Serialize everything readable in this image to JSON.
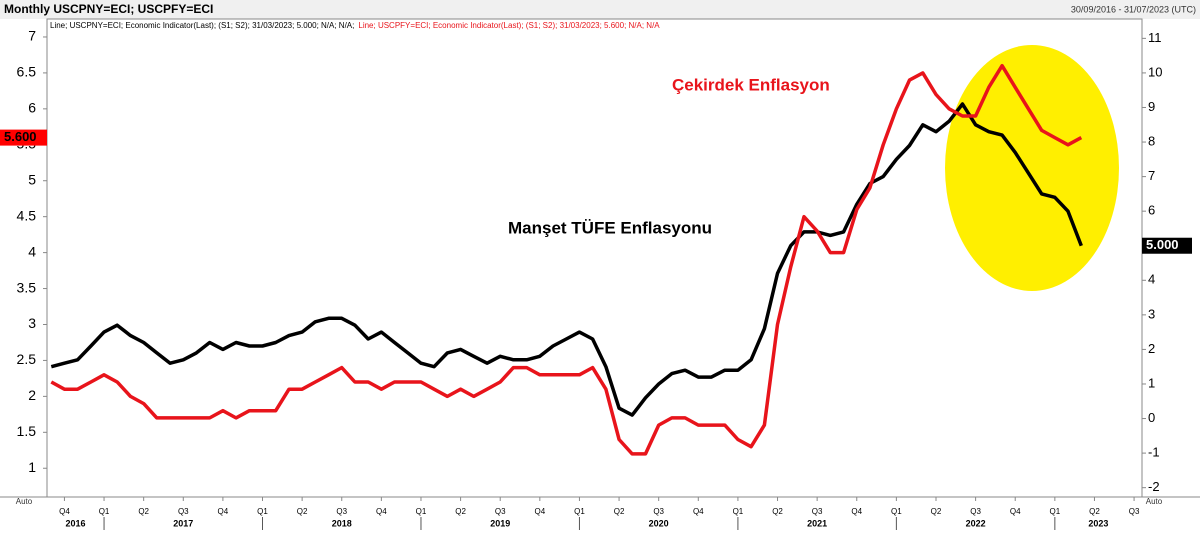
{
  "chart_data": {
    "type": "line",
    "title": "Monthly USCPNY=ECI; USCPFY=ECI",
    "date_range": "30/09/2016 - 31/07/2023 (UTC)",
    "x": [
      2016.667,
      2016.75,
      2016.833,
      2016.917,
      2017,
      2017.083,
      2017.167,
      2017.25,
      2017.333,
      2017.417,
      2017.5,
      2017.583,
      2017.667,
      2017.75,
      2017.833,
      2017.917,
      2018,
      2018.083,
      2018.167,
      2018.25,
      2018.333,
      2018.417,
      2018.5,
      2018.583,
      2018.667,
      2018.75,
      2018.833,
      2018.917,
      2019,
      2019.083,
      2019.167,
      2019.25,
      2019.333,
      2019.417,
      2019.5,
      2019.583,
      2019.667,
      2019.75,
      2019.833,
      2019.917,
      2020,
      2020.083,
      2020.167,
      2020.25,
      2020.333,
      2020.417,
      2020.5,
      2020.583,
      2020.667,
      2020.75,
      2020.833,
      2020.917,
      2021,
      2021.083,
      2021.167,
      2021.25,
      2021.333,
      2021.417,
      2021.5,
      2021.583,
      2021.667,
      2021.75,
      2021.833,
      2021.917,
      2022,
      2022.083,
      2022.167,
      2022.25,
      2022.333,
      2022.417,
      2022.5,
      2022.583,
      2022.667,
      2022.75,
      2022.833,
      2022.917,
      2023,
      2023.083,
      2023.167
    ],
    "series": [
      {
        "legend": "Line; USCPNY=ECI; Economic Indicator(Last); (S1; S2); 31/03/2023; 5.000; N/A; N/A;",
        "color": "#000000",
        "axis": "y2",
        "last_label": "5.000",
        "values": [
          1.5,
          1.6,
          1.7,
          2.1,
          2.5,
          2.7,
          2.4,
          2.2,
          1.9,
          1.6,
          1.7,
          1.9,
          2.2,
          2.0,
          2.2,
          2.1,
          2.1,
          2.2,
          2.4,
          2.5,
          2.8,
          2.9,
          2.9,
          2.7,
          2.3,
          2.5,
          2.2,
          1.9,
          1.6,
          1.5,
          1.9,
          2.0,
          1.8,
          1.6,
          1.8,
          1.7,
          1.7,
          1.8,
          2.1,
          2.3,
          2.5,
          2.3,
          1.5,
          0.3,
          0.1,
          0.6,
          1.0,
          1.3,
          1.4,
          1.2,
          1.2,
          1.4,
          1.4,
          1.7,
          2.6,
          4.2,
          5.0,
          5.4,
          5.4,
          5.3,
          5.4,
          6.2,
          6.8,
          7.0,
          7.5,
          7.9,
          8.5,
          8.3,
          8.6,
          9.1,
          8.5,
          8.3,
          8.2,
          7.7,
          7.1,
          6.5,
          6.4,
          6.0,
          5.0
        ]
      },
      {
        "legend": "Line; USCPFY=ECI; Economic Indicator(Last); (S1; S2); 31/03/2023; 5.600; N/A; N/A",
        "color": "#e8141b",
        "axis": "y",
        "last_label": "5.600",
        "values": [
          2.2,
          2.1,
          2.1,
          2.2,
          2.3,
          2.2,
          2.0,
          1.9,
          1.7,
          1.7,
          1.7,
          1.7,
          1.7,
          1.8,
          1.7,
          1.8,
          1.8,
          1.8,
          2.1,
          2.1,
          2.2,
          2.3,
          2.4,
          2.2,
          2.2,
          2.1,
          2.2,
          2.2,
          2.2,
          2.1,
          2.0,
          2.1,
          2.0,
          2.1,
          2.2,
          2.4,
          2.4,
          2.3,
          2.3,
          2.3,
          2.3,
          2.4,
          2.1,
          1.4,
          1.2,
          1.2,
          1.6,
          1.7,
          1.7,
          1.6,
          1.6,
          1.6,
          1.4,
          1.3,
          1.6,
          3.0,
          3.8,
          4.5,
          4.3,
          4.0,
          4.0,
          4.6,
          4.9,
          5.5,
          6.0,
          6.4,
          6.5,
          6.2,
          6.0,
          5.9,
          5.9,
          6.3,
          6.6,
          6.3,
          6.0,
          5.7,
          5.6,
          5.5,
          5.6
        ]
      }
    ],
    "xlim": [
      2016.64,
      2023.55
    ],
    "xticks": [
      {
        "value": 2016.75,
        "label": "Q4"
      },
      {
        "value": 2017,
        "label": "Q1"
      },
      {
        "value": 2017.25,
        "label": "Q2"
      },
      {
        "value": 2017.5,
        "label": "Q3"
      },
      {
        "value": 2017.75,
        "label": "Q4"
      },
      {
        "value": 2018,
        "label": "Q1"
      },
      {
        "value": 2018.25,
        "label": "Q2"
      },
      {
        "value": 2018.5,
        "label": "Q3"
      },
      {
        "value": 2018.75,
        "label": "Q4"
      },
      {
        "value": 2019,
        "label": "Q1"
      },
      {
        "value": 2019.25,
        "label": "Q2"
      },
      {
        "value": 2019.5,
        "label": "Q3"
      },
      {
        "value": 2019.75,
        "label": "Q4"
      },
      {
        "value": 2020,
        "label": "Q1"
      },
      {
        "value": 2020.25,
        "label": "Q2"
      },
      {
        "value": 2020.5,
        "label": "Q3"
      },
      {
        "value": 2020.75,
        "label": "Q4"
      },
      {
        "value": 2021,
        "label": "Q1"
      },
      {
        "value": 2021.25,
        "label": "Q2"
      },
      {
        "value": 2021.5,
        "label": "Q3"
      },
      {
        "value": 2021.75,
        "label": "Q4"
      },
      {
        "value": 2022,
        "label": "Q1"
      },
      {
        "value": 2022.25,
        "label": "Q2"
      },
      {
        "value": 2022.5,
        "label": "Q3"
      },
      {
        "value": 2022.75,
        "label": "Q4"
      },
      {
        "value": 2023,
        "label": "Q1"
      },
      {
        "value": 2023.25,
        "label": "Q2"
      },
      {
        "value": 2023.5,
        "label": "Q3"
      }
    ],
    "xyears": [
      2016,
      2017,
      2018,
      2019,
      2020,
      2021,
      2022,
      2023
    ],
    "ylim": [
      0.6,
      7.25
    ],
    "yticks": [
      1,
      1.5,
      2,
      2.5,
      3,
      3.5,
      4,
      4.5,
      5,
      5.5,
      6,
      6.5,
      7
    ],
    "y2lim": [
      -2.27,
      11.56
    ],
    "y2ticks": [
      -2,
      -1,
      0,
      1,
      2,
      3,
      4,
      5,
      6,
      7,
      8,
      9,
      10,
      11
    ],
    "annotations": [
      {
        "text": "Çekirdek Enflasyon",
        "color": "#e8141b"
      },
      {
        "text": "Manşet TÜFE Enflasyonu",
        "color": "#000000"
      }
    ],
    "scale_mode": "Auto"
  }
}
